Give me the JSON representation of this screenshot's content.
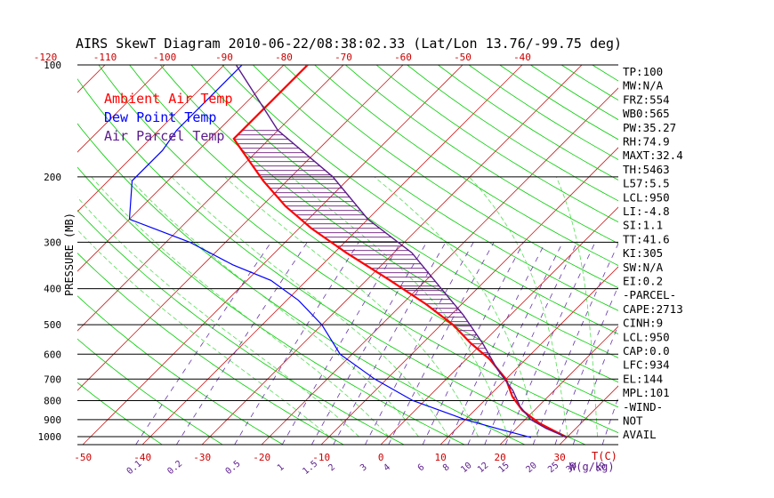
{
  "chart_data": {
    "type": "skewt",
    "title": "AIRS SkewT Diagram 2010-06-22/08:38:02.33 (Lat/Lon 13.76/-99.75 deg)",
    "ylabel": "PRESSURE (MB)",
    "bottom_axis_unit": "T(C)",
    "mixing_ratio_unit": "W(g/kg)",
    "pressure_ticks": [
      "100",
      "200",
      "300",
      "400",
      "500",
      "600",
      "700",
      "800",
      "900",
      "1000"
    ],
    "pressure_lines": [
      100,
      200,
      300,
      400,
      500,
      600,
      700,
      800,
      900,
      1000
    ],
    "bottom_temp_ticks": [
      "-50",
      "-40",
      "-30",
      "-20",
      "-10",
      "0",
      "10",
      "20",
      "30"
    ],
    "top_temp_ticks": [
      "-120",
      "-110",
      "-100",
      "-90",
      "-80",
      "-70",
      "-60",
      "-50",
      "-40"
    ],
    "mixing_ratio_ticks": [
      "0.1",
      "0.2",
      "0.5",
      "1",
      "1.5",
      "2",
      "3",
      "4",
      "6",
      "8",
      "10",
      "12",
      "15",
      "20",
      "25",
      "30",
      "40"
    ],
    "legend": [
      {
        "name": "Ambient Air Temp",
        "color": "#ff0000"
      },
      {
        "name": "Dew Point Temp",
        "color": "#0000ff"
      },
      {
        "name": "Air Parcel Temp",
        "color": "#5a1a8c"
      }
    ],
    "colors": {
      "isotherm": "#cc2222",
      "dry_adiabat": "#00cc00",
      "moist_adiabat": "#55dd55",
      "mixing_ratio": "#6633aa",
      "isobar": "#000000",
      "cape_hatch": "#6a1a7a"
    },
    "series": [
      {
        "name": "Ambient Air Temp",
        "points": [
          [
            100,
            -76
          ],
          [
            158,
            -76
          ],
          [
            180,
            -70
          ],
          [
            205,
            -64
          ],
          [
            240,
            -56
          ],
          [
            275,
            -48
          ],
          [
            320,
            -38
          ],
          [
            380,
            -26
          ],
          [
            440,
            -16
          ],
          [
            500,
            -8
          ],
          [
            560,
            -2
          ],
          [
            620,
            4
          ],
          [
            700,
            10
          ],
          [
            780,
            14
          ],
          [
            850,
            18
          ],
          [
            920,
            23
          ],
          [
            980,
            28
          ],
          [
            1005,
            30
          ]
        ]
      },
      {
        "name": "Dew Point Temp",
        "points": [
          [
            100,
            -87
          ],
          [
            150,
            -87
          ],
          [
            170,
            -86
          ],
          [
            205,
            -86
          ],
          [
            260,
            -80
          ],
          [
            300,
            -66
          ],
          [
            345,
            -55
          ],
          [
            380,
            -46
          ],
          [
            430,
            -38
          ],
          [
            500,
            -30
          ],
          [
            600,
            -22
          ],
          [
            700,
            -12
          ],
          [
            800,
            -2
          ],
          [
            900,
            10
          ],
          [
            960,
            18
          ],
          [
            1005,
            24
          ]
        ]
      },
      {
        "name": "Air Parcel Temp",
        "points": [
          [
            100,
            -88
          ],
          [
            150,
            -70
          ],
          [
            200,
            -53
          ],
          [
            260,
            -40
          ],
          [
            320,
            -27
          ],
          [
            400,
            -16
          ],
          [
            470,
            -8
          ],
          [
            560,
            0
          ],
          [
            660,
            7
          ],
          [
            750,
            13
          ],
          [
            830,
            17
          ],
          [
            900,
            21
          ],
          [
            950,
            25
          ],
          [
            1005,
            30
          ]
        ]
      }
    ],
    "indices": [
      "TP:100",
      "MW:N/A",
      "FRZ:554",
      "WB0:565",
      "PW:35.27",
      "RH:74.9",
      "MAXT:32.4",
      "TH:5463",
      "L57:5.5",
      "LCL:950",
      "LI:-4.8",
      "SI:1.1",
      "TT:41.6",
      "KI:305",
      "SW:N/A",
      "EI:0.2",
      "-PARCEL-",
      "CAPE:2713",
      "CINH:9",
      "LCL:950",
      "CAP:0.0",
      "LFC:934",
      "EL:144",
      "MPL:101",
      "-WIND-",
      "NOT",
      "AVAIL"
    ]
  }
}
